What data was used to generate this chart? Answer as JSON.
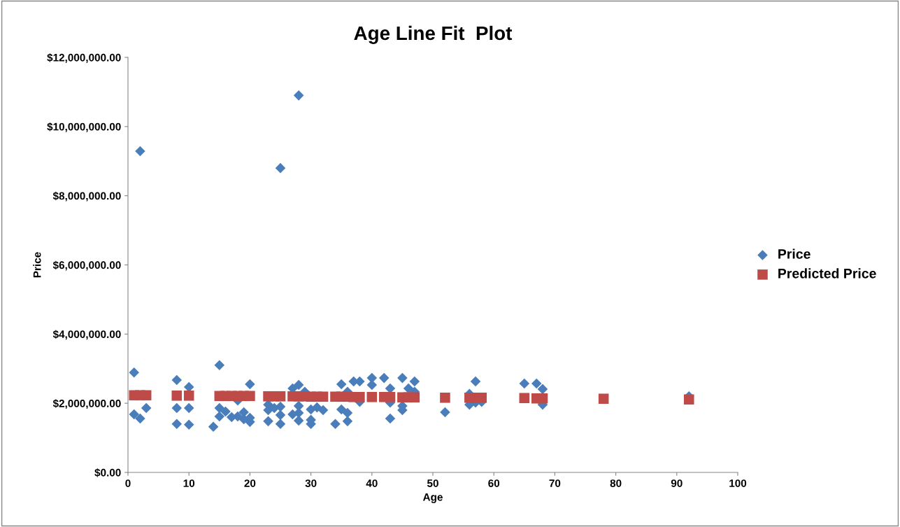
{
  "chart_data": {
    "type": "scatter",
    "title": "Age Line Fit  Plot",
    "xlabel": "Age",
    "ylabel": "Price",
    "xlim": [
      0,
      100
    ],
    "xticks": [
      0,
      10,
      20,
      30,
      40,
      50,
      60,
      70,
      80,
      90,
      100
    ],
    "ylim": [
      0,
      12000000
    ],
    "yticks": [
      {
        "value": 0,
        "label": "$0.00"
      },
      {
        "value": 2000000,
        "label": "$2,000,000.00"
      },
      {
        "value": 4000000,
        "label": "$4,000,000.00"
      },
      {
        "value": 6000000,
        "label": "$6,000,000.00"
      },
      {
        "value": 8000000,
        "label": "$8,000,000.00"
      },
      {
        "value": 10000000,
        "label": "$10,000,000.00"
      },
      {
        "value": 12000000,
        "label": "$12,000,000.00"
      }
    ],
    "grid": false,
    "legend": "right",
    "series": [
      {
        "name": "Price",
        "color": "#4a7ebb",
        "marker": "diamond",
        "x": [
          1,
          1,
          2,
          2,
          3,
          8,
          8,
          8,
          10,
          10,
          10,
          14,
          15,
          15,
          15,
          16,
          17,
          18,
          18,
          19,
          19,
          20,
          20,
          20,
          23,
          23,
          23,
          24,
          25,
          25,
          25,
          25,
          27,
          27,
          28,
          28,
          28,
          28,
          28,
          29,
          30,
          30,
          30,
          31,
          32,
          34,
          35,
          35,
          36,
          36,
          36,
          37,
          38,
          38,
          40,
          40,
          42,
          43,
          43,
          43,
          45,
          45,
          45,
          46,
          47,
          47,
          52,
          56,
          56,
          57,
          57,
          58,
          65,
          67,
          68,
          68,
          92
        ],
        "values": [
          2890000,
          1680000,
          9290000,
          1560000,
          1860000,
          2670000,
          1860000,
          1400000,
          2470000,
          1860000,
          1380000,
          1320000,
          3100000,
          1860000,
          1620000,
          1760000,
          1600000,
          2080000,
          1620000,
          1740000,
          1540000,
          2550000,
          1580000,
          1460000,
          1960000,
          1800000,
          1480000,
          1860000,
          8800000,
          1900000,
          1660000,
          1400000,
          2430000,
          1680000,
          10900000,
          2530000,
          1920000,
          1720000,
          1500000,
          2330000,
          1820000,
          1520000,
          1400000,
          1880000,
          1800000,
          1400000,
          2550000,
          1820000,
          2330000,
          1720000,
          1480000,
          2630000,
          2630000,
          2040000,
          2730000,
          2530000,
          2730000,
          2430000,
          2020000,
          1560000,
          2730000,
          1920000,
          1800000,
          2430000,
          2630000,
          2330000,
          1740000,
          2270000,
          1960000,
          2630000,
          2020000,
          2040000,
          2570000,
          2570000,
          2410000,
          1960000,
          2200000
        ]
      },
      {
        "name": "Predicted Price",
        "color": "#be4b48",
        "marker": "square",
        "x": [
          1,
          2,
          3,
          8,
          10,
          15,
          16,
          17,
          18,
          19,
          20,
          23,
          24,
          25,
          27,
          28,
          29,
          30,
          31,
          32,
          34,
          35,
          36,
          37,
          38,
          40,
          42,
          43,
          45,
          46,
          47,
          52,
          56,
          57,
          58,
          65,
          67,
          68,
          78,
          92
        ],
        "values": [
          2230000,
          2230000,
          2230000,
          2220000,
          2220000,
          2210000,
          2210000,
          2210000,
          2210000,
          2210000,
          2210000,
          2200000,
          2200000,
          2200000,
          2200000,
          2200000,
          2200000,
          2190000,
          2190000,
          2190000,
          2190000,
          2190000,
          2190000,
          2180000,
          2180000,
          2180000,
          2180000,
          2180000,
          2170000,
          2170000,
          2170000,
          2160000,
          2160000,
          2160000,
          2160000,
          2150000,
          2140000,
          2140000,
          2130000,
          2110000
        ]
      }
    ]
  }
}
